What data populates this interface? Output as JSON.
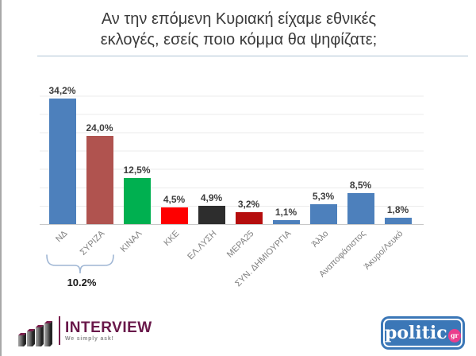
{
  "title": {
    "line1": "Αν την επόμενη Κυριακή είχαμε εθνικές",
    "line2": "εκλογές, εσείς ποιο κόμμα θα ψηφίζατε;"
  },
  "chart_data": {
    "type": "bar",
    "title": "Αν την επόμενη Κυριακή είχαμε εθνικές εκλογές, εσείς ποιο κόμμα θα ψηφίζατε;",
    "categories": [
      "ΝΔ",
      "ΣΥΡΙΖΑ",
      "ΚΙΝΑΛ",
      "ΚΚΕ",
      "ΕΛ.ΛΥΣΗ",
      "ΜΕΡΑ25",
      "ΣΥΝ. ΔΗΜΙΟΥΡΓΙΑ",
      "Άλλο",
      "Αναποφάσιστος",
      "Άκυρο/Λευκό"
    ],
    "values": [
      34.2,
      24.0,
      12.5,
      4.5,
      4.9,
      3.2,
      1.1,
      5.3,
      8.5,
      1.8
    ],
    "value_labels": [
      "34,2%",
      "24,0%",
      "12,5%",
      "4,5%",
      "4,9%",
      "3,2%",
      "1,1%",
      "5,3%",
      "8,5%",
      "1,8%"
    ],
    "bar_colors": [
      "#4d80bc",
      "#b0534f",
      "#00b050",
      "#fe0000",
      "#2d2d2d",
      "#b50d0d",
      "#4d80bc",
      "#4d80bc",
      "#4d80bc",
      "#4d80bc"
    ],
    "xlabel": "",
    "ylabel": "",
    "ylim": [
      0,
      40
    ],
    "grid": true,
    "gridline_step_pct": 5,
    "legend_position": "none",
    "annotation": {
      "text": "10.2%",
      "span_categories": [
        "ΝΔ",
        "ΣΥΡΙΖΑ"
      ]
    }
  },
  "footer": {
    "interview_logo": {
      "name": "INTERVIEW",
      "tagline": "We simply ask!"
    },
    "politic_logo": {
      "name": "politic",
      "suffix": "gr"
    }
  },
  "colors": {
    "brace": "#9fb6d4",
    "gridline": "#ebebeb",
    "axis": "#c8c8c8",
    "title_text": "#3a3a3a",
    "tick_text": "#808080",
    "interview_maroon": "#69184a",
    "politic_blue": "#3b77b7",
    "politic_pink": "#ea3d8d"
  }
}
